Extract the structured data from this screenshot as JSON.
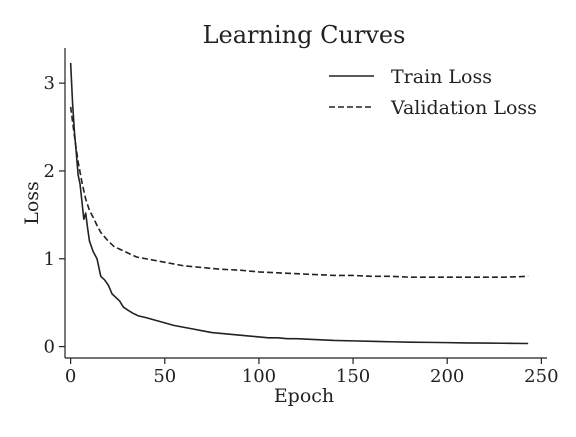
{
  "chart_data": {
    "type": "line",
    "title": "Learning Curves",
    "xlabel": "Epoch",
    "ylabel": "Loss",
    "xlim": [
      -3,
      253
    ],
    "ylim": [
      -0.13,
      3.4
    ],
    "xticks": [
      0,
      50,
      100,
      150,
      200,
      250
    ],
    "yticks": [
      0,
      1,
      2,
      3
    ],
    "grid": false,
    "legend_position": "top-right",
    "series": [
      {
        "name": "Train Loss",
        "color": "#222222",
        "linestyle": "solid",
        "x": [
          0,
          1,
          2,
          3,
          4,
          5,
          6,
          7,
          8,
          9,
          10,
          12,
          14,
          16,
          18,
          20,
          22,
          24,
          26,
          28,
          30,
          33,
          36,
          40,
          45,
          50,
          55,
          60,
          65,
          70,
          75,
          80,
          85,
          90,
          95,
          100,
          105,
          110,
          115,
          120,
          130,
          140,
          150,
          160,
          170,
          180,
          190,
          200,
          210,
          220,
          230,
          243
        ],
        "values": [
          3.23,
          2.78,
          2.45,
          2.2,
          1.95,
          1.85,
          1.65,
          1.45,
          1.52,
          1.35,
          1.2,
          1.08,
          1.0,
          0.8,
          0.76,
          0.7,
          0.6,
          0.56,
          0.52,
          0.45,
          0.42,
          0.38,
          0.35,
          0.33,
          0.3,
          0.27,
          0.24,
          0.22,
          0.2,
          0.18,
          0.16,
          0.15,
          0.14,
          0.13,
          0.12,
          0.11,
          0.1,
          0.1,
          0.09,
          0.09,
          0.08,
          0.07,
          0.065,
          0.06,
          0.055,
          0.05,
          0.048,
          0.045,
          0.042,
          0.04,
          0.038,
          0.035
        ]
      },
      {
        "name": "Validation Loss",
        "color": "#222222",
        "linestyle": "dashed",
        "x": [
          0,
          2,
          4,
          6,
          8,
          10,
          12,
          14,
          16,
          18,
          20,
          23,
          26,
          30,
          35,
          40,
          45,
          50,
          60,
          70,
          80,
          90,
          100,
          110,
          120,
          130,
          140,
          150,
          160,
          170,
          180,
          190,
          200,
          210,
          220,
          230,
          243
        ],
        "values": [
          2.73,
          2.4,
          2.1,
          1.87,
          1.68,
          1.55,
          1.47,
          1.38,
          1.3,
          1.25,
          1.2,
          1.14,
          1.11,
          1.07,
          1.02,
          1.0,
          0.98,
          0.96,
          0.92,
          0.9,
          0.88,
          0.87,
          0.85,
          0.84,
          0.83,
          0.82,
          0.81,
          0.81,
          0.8,
          0.8,
          0.79,
          0.79,
          0.79,
          0.79,
          0.79,
          0.79,
          0.8
        ]
      }
    ]
  }
}
